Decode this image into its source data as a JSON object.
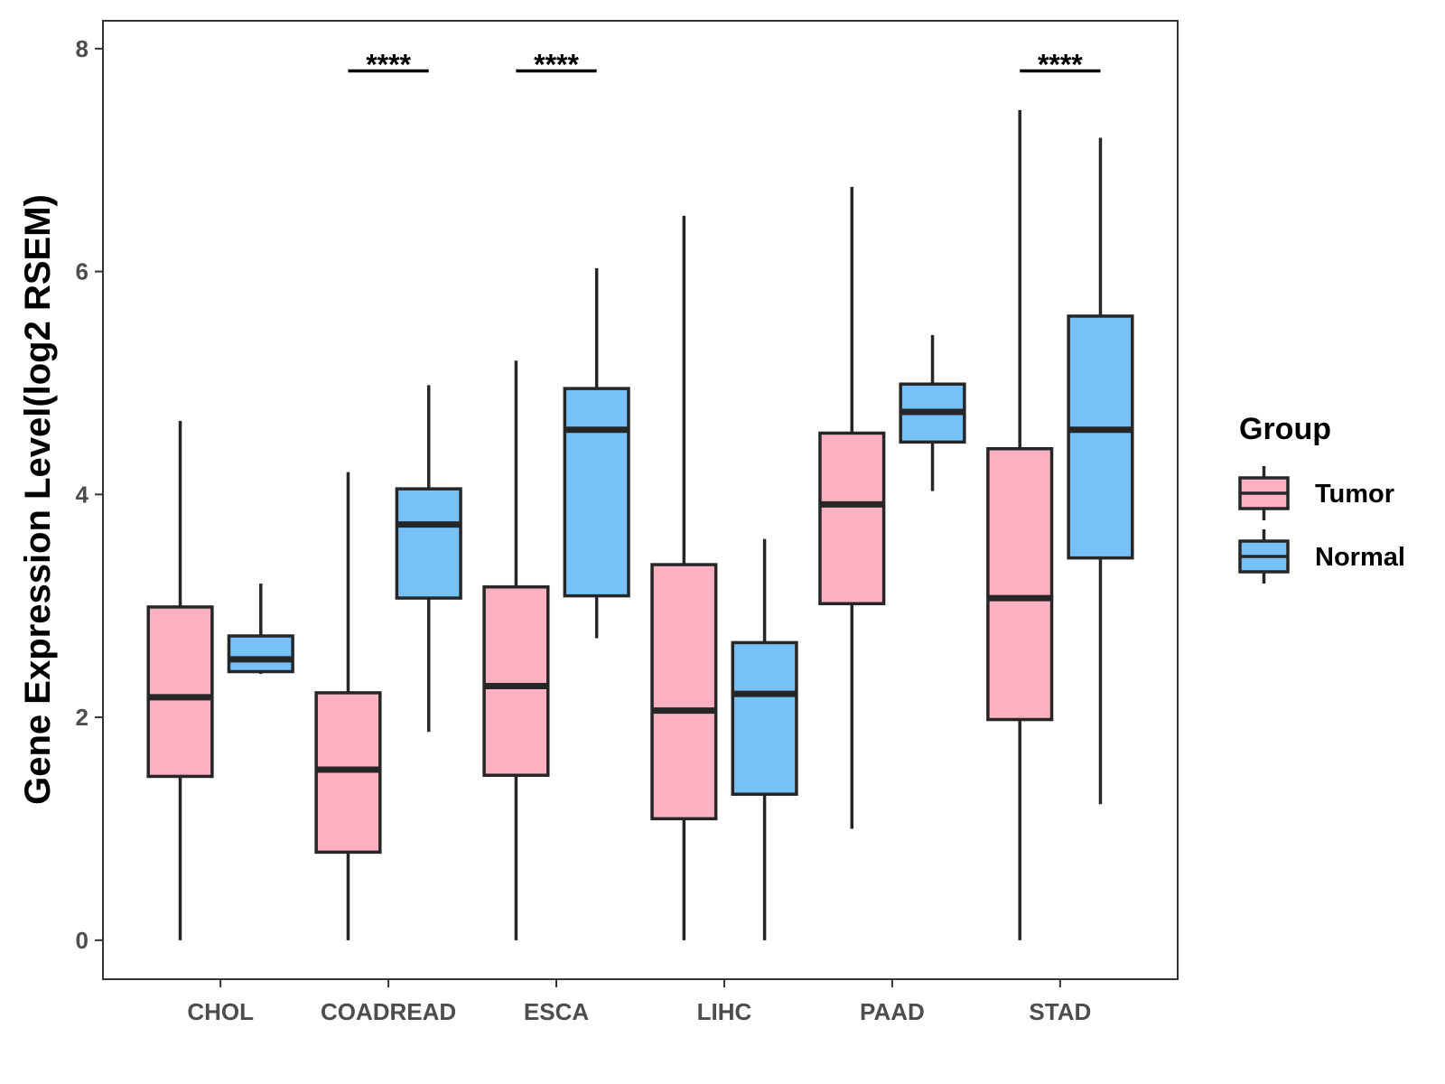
{
  "chart_data": {
    "type": "boxplot",
    "ylabel": "Gene Expression Level(log2 RSEM)",
    "xlabel": "",
    "ylim": [
      -0.35,
      8.25
    ],
    "yticks": [
      0,
      2,
      4,
      6,
      8
    ],
    "categories": [
      "CHOL",
      "COADREAD",
      "ESCA",
      "LIHC",
      "PAAD",
      "STAD"
    ],
    "legend": {
      "title": "Group",
      "position": "right",
      "entries": [
        {
          "name": "Tumor",
          "color": "#fbb1c2"
        },
        {
          "name": "Normal",
          "color": "#76c1f8"
        }
      ]
    },
    "series": [
      {
        "name": "Tumor",
        "color": "#fbb1c2",
        "boxes": [
          {
            "min": 0.0,
            "q1": 1.47,
            "median": 2.18,
            "q3": 2.99,
            "max": 4.66
          },
          {
            "min": 0.0,
            "q1": 0.79,
            "median": 1.53,
            "q3": 2.22,
            "max": 4.2
          },
          {
            "min": 0.0,
            "q1": 1.48,
            "median": 2.28,
            "q3": 3.17,
            "max": 5.2
          },
          {
            "min": 0.0,
            "q1": 1.09,
            "median": 2.06,
            "q3": 3.37,
            "max": 6.5
          },
          {
            "min": 1.0,
            "q1": 3.02,
            "median": 3.91,
            "q3": 4.55,
            "max": 6.76
          },
          {
            "min": 0.0,
            "q1": 1.98,
            "median": 3.07,
            "q3": 4.41,
            "max": 7.45
          }
        ]
      },
      {
        "name": "Normal",
        "color": "#76c1f8",
        "boxes": [
          {
            "min": 2.39,
            "q1": 2.41,
            "median": 2.52,
            "q3": 2.73,
            "max": 3.2
          },
          {
            "min": 1.87,
            "q1": 3.07,
            "median": 3.73,
            "q3": 4.05,
            "max": 4.98
          },
          {
            "min": 2.71,
            "q1": 3.09,
            "median": 4.58,
            "q3": 4.95,
            "max": 6.03
          },
          {
            "min": 0.0,
            "q1": 1.31,
            "median": 2.21,
            "q3": 2.67,
            "max": 3.6
          },
          {
            "min": 4.03,
            "q1": 4.47,
            "median": 4.74,
            "q3": 4.99,
            "max": 5.43
          },
          {
            "min": 1.22,
            "q1": 3.43,
            "median": 4.58,
            "q3": 5.6,
            "max": 7.2
          }
        ]
      }
    ],
    "significance": [
      {
        "category": "COADREAD",
        "label": "****",
        "y": 7.8
      },
      {
        "category": "ESCA",
        "label": "****",
        "y": 7.8
      },
      {
        "category": "STAD",
        "label": "****",
        "y": 7.8
      }
    ]
  }
}
